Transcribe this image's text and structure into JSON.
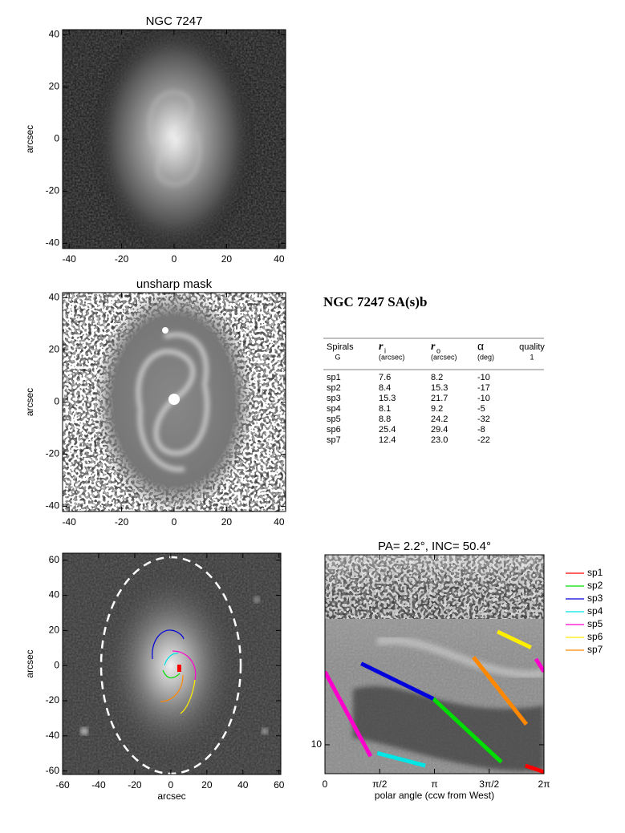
{
  "chart_data": [
    {
      "type": "image",
      "title": "NGC 7247",
      "ylabel": "arcsec",
      "xlim": [
        -42.5,
        42.5
      ],
      "ylim": [
        -42,
        42
      ],
      "xticks": [
        -40,
        -20,
        0,
        20,
        40
      ],
      "yticks": [
        -40,
        -20,
        0,
        20,
        40
      ]
    },
    {
      "type": "image",
      "title": "unsharp mask",
      "ylabel": "arcsec",
      "xlim": [
        -42.5,
        42.5
      ],
      "ylim": [
        -42,
        42
      ],
      "xticks": [
        -40,
        -20,
        0,
        20,
        40
      ],
      "yticks": [
        -40,
        -20,
        0,
        20,
        40
      ]
    },
    {
      "type": "image",
      "xlabel": "arcsec",
      "ylabel": "arcsec",
      "xlim": [
        -60,
        61
      ],
      "ylim": [
        -62,
        64
      ],
      "xticks": [
        -60,
        -40,
        -20,
        0,
        20,
        40,
        60
      ],
      "yticks": [
        -60,
        -40,
        -20,
        0,
        20,
        40,
        60
      ]
    },
    {
      "type": "line",
      "title": "PA=  2.2°, INC= 50.4°",
      "xlabel": "polar angle (ccw from West)",
      "xlim": [
        0,
        6.2832
      ],
      "ylim": [
        7.47,
        68
      ],
      "log_y": true,
      "xticks": [
        0,
        {
          "value": 1.5708,
          "label": "π/2"
        },
        {
          "value": 3.1416,
          "label": "π"
        },
        {
          "value": 4.7124,
          "label": "3π/2"
        },
        {
          "value": 6.2832,
          "label": "2π"
        }
      ],
      "yticks": [
        10
      ],
      "series": [
        {
          "name": "sp1",
          "color": "#ff0000",
          "x": [
            5.75,
            6.2832
          ],
          "values": [
            8.1,
            7.6
          ]
        },
        {
          "name": "sp2",
          "color": "#00dd00",
          "x": [
            3.11,
            5.06
          ],
          "values": [
            15.9,
            8.4
          ]
        },
        {
          "name": "sp3",
          "color": "#0000dd",
          "x": [
            1.04,
            3.11
          ],
          "values": [
            22.7,
            15.9
          ]
        },
        {
          "name": "sp4",
          "color": "#00e5e5",
          "x": [
            1.5,
            2.88
          ],
          "values": [
            9.2,
            8.1
          ]
        },
        {
          "name": "sp5",
          "color": "#ff00cc",
          "x": [
            0,
            1.31,
            null,
            6.05,
            6.2832
          ],
          "values": [
            20.9,
            8.9,
            null,
            23.8,
            20.9
          ]
        },
        {
          "name": "sp6",
          "color": "#ffee00",
          "x": [
            4.95,
            5.91
          ],
          "values": [
            31.3,
            26.7
          ]
        },
        {
          "name": "sp7",
          "color": "#ff8800",
          "x": [
            4.26,
            5.78
          ],
          "values": [
            24.2,
            12.3
          ]
        }
      ]
    }
  ],
  "table": {
    "title": "NGC 7247  SA(s)b",
    "columns": [
      {
        "name": "Spirals",
        "sub": "G"
      },
      {
        "name": "r",
        "index": "i",
        "sub": "(arcsec)"
      },
      {
        "name": "r",
        "index": "o",
        "sub": "(arcsec)"
      },
      {
        "name": "α",
        "sub": "(deg)"
      },
      {
        "name": "quality",
        "sub": "1"
      }
    ],
    "rows": [
      [
        "sp1",
        "7.6",
        "8.2",
        "-10"
      ],
      [
        "sp2",
        "8.4",
        "15.3",
        "-17"
      ],
      [
        "sp3",
        "15.3",
        "21.7",
        "-10"
      ],
      [
        "sp4",
        "8.1",
        "9.2",
        "-5"
      ],
      [
        "sp5",
        "8.8",
        "24.2",
        "-32"
      ],
      [
        "sp6",
        "25.4",
        "29.4",
        "-8"
      ],
      [
        "sp7",
        "12.4",
        "23.0",
        "-22"
      ]
    ]
  }
}
